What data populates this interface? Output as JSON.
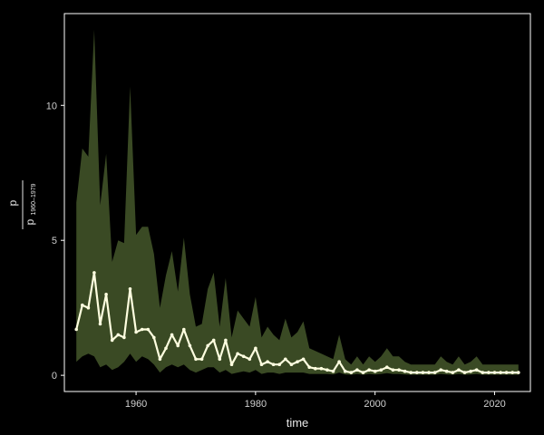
{
  "chart_data": {
    "type": "line",
    "xlabel": "time",
    "ylabel": {
      "numerator": "p",
      "denominator": "p",
      "subscript": "1960–1979"
    },
    "xlim": [
      1948,
      2026
    ],
    "ylim": [
      -0.6,
      13.4
    ],
    "x_ticks": [
      1960,
      1980,
      2000,
      2020
    ],
    "y_ticks": [
      0,
      5,
      10
    ],
    "grid": false,
    "colors": {
      "background": "#000000",
      "frame": "#ffffff",
      "band": "#3a4a24",
      "line": "#ffffe0"
    },
    "series": [
      {
        "x": [
          1950,
          1951,
          1952,
          1953,
          1954,
          1955,
          1956,
          1957,
          1958,
          1959,
          1960,
          1961,
          1962,
          1963,
          1964,
          1965,
          1966,
          1967,
          1968,
          1969,
          1970,
          1971,
          1972,
          1973,
          1974,
          1975,
          1976,
          1977,
          1978,
          1979,
          1980,
          1981,
          1982,
          1983,
          1984,
          1985,
          1986,
          1987,
          1988,
          1989,
          1990,
          1991,
          1992,
          1993,
          1994,
          1995,
          1996,
          1997,
          1998,
          1999,
          2000,
          2001,
          2002,
          2003,
          2004,
          2005,
          2006,
          2007,
          2008,
          2009,
          2010,
          2011,
          2012,
          2013,
          2014,
          2015,
          2016,
          2017,
          2018,
          2019,
          2020,
          2021,
          2022,
          2023,
          2024
        ],
        "y": [
          1.7,
          2.6,
          2.5,
          3.8,
          1.9,
          3.0,
          1.3,
          1.5,
          1.4,
          3.2,
          1.6,
          1.7,
          1.7,
          1.4,
          0.6,
          1.0,
          1.5,
          1.1,
          1.7,
          1.1,
          0.6,
          0.6,
          1.1,
          1.3,
          0.6,
          1.3,
          0.4,
          0.8,
          0.7,
          0.6,
          1.0,
          0.4,
          0.5,
          0.4,
          0.4,
          0.6,
          0.4,
          0.5,
          0.6,
          0.3,
          0.25,
          0.25,
          0.2,
          0.15,
          0.5,
          0.15,
          0.1,
          0.2,
          0.1,
          0.2,
          0.15,
          0.2,
          0.3,
          0.2,
          0.2,
          0.15,
          0.1,
          0.1,
          0.1,
          0.1,
          0.1,
          0.2,
          0.15,
          0.1,
          0.2,
          0.1,
          0.15,
          0.2,
          0.1,
          0.1,
          0.1,
          0.1,
          0.1,
          0.1,
          0.1
        ],
        "lower": [
          0.5,
          0.7,
          0.8,
          0.7,
          0.3,
          0.4,
          0.2,
          0.3,
          0.5,
          0.8,
          0.5,
          0.7,
          0.6,
          0.4,
          0.1,
          0.3,
          0.4,
          0.3,
          0.4,
          0.2,
          0.1,
          0.2,
          0.3,
          0.3,
          0.1,
          0.2,
          0.05,
          0.1,
          0.15,
          0.1,
          0.2,
          0.05,
          0.1,
          0.1,
          0.05,
          0.1,
          0.1,
          0.1,
          0.1,
          0.05,
          0.05,
          0.05,
          0.05,
          0.03,
          0.1,
          0.03,
          0.02,
          0.05,
          0.02,
          0.05,
          0.03,
          0.05,
          0.08,
          0.05,
          0.05,
          0.03,
          0.02,
          0.02,
          0.02,
          0.02,
          0.02,
          0.05,
          0.03,
          0.02,
          0.05,
          0.02,
          0.03,
          0.05,
          0.02,
          0.02,
          0.02,
          0.02,
          0.02,
          0.02,
          0.02
        ],
        "upper": [
          6.4,
          8.4,
          8.1,
          12.8,
          6.3,
          8.2,
          4.2,
          5.0,
          4.9,
          10.7,
          5.2,
          5.5,
          5.5,
          4.5,
          2.5,
          3.7,
          4.6,
          3.1,
          5.1,
          3.0,
          1.8,
          1.9,
          3.2,
          3.8,
          1.8,
          3.6,
          1.4,
          2.4,
          2.1,
          1.8,
          2.9,
          1.4,
          1.8,
          1.5,
          1.3,
          2.1,
          1.4,
          1.6,
          2.0,
          1.0,
          0.9,
          0.8,
          0.7,
          0.6,
          1.5,
          0.6,
          0.4,
          0.7,
          0.4,
          0.7,
          0.5,
          0.7,
          1.0,
          0.7,
          0.7,
          0.5,
          0.4,
          0.4,
          0.4,
          0.4,
          0.4,
          0.7,
          0.5,
          0.4,
          0.7,
          0.4,
          0.5,
          0.7,
          0.4,
          0.4,
          0.4,
          0.4,
          0.4,
          0.4,
          0.4
        ]
      }
    ]
  }
}
